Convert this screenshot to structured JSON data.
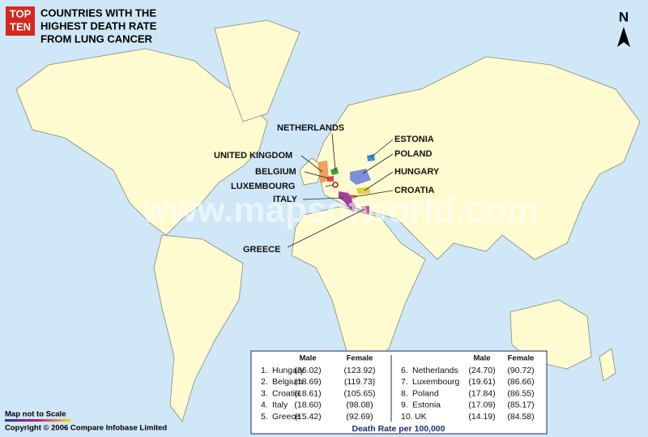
{
  "badge": [
    "TOP",
    "TEN"
  ],
  "title": [
    "COUNTRIES WITH THE",
    "HIGHEST DEATH RATE",
    "FROM LUNG CANCER"
  ],
  "north": "N",
  "watermark": "www.mapsofworld.com",
  "labels": [
    {
      "text": "NETHERLANDS"
    },
    {
      "text": "ESTONIA"
    },
    {
      "text": "UNITED KINGDOM"
    },
    {
      "text": "POLAND"
    },
    {
      "text": "BELGIUM"
    },
    {
      "text": "HUNGARY"
    },
    {
      "text": "LUXEMBOURG"
    },
    {
      "text": "CROATIA"
    },
    {
      "text": "ITALY"
    },
    {
      "text": "GREECE"
    }
  ],
  "table": {
    "headers": [
      "Male",
      "Female"
    ],
    "rows": [
      {
        "rank": "1.",
        "country": "Hungary",
        "male": "(36.02)",
        "female": "(123.92)"
      },
      {
        "rank": "2.",
        "country": "Belgium",
        "male": "(18.69)",
        "female": "(119.73)"
      },
      {
        "rank": "3.",
        "country": "Croatia",
        "male": "(18.61)",
        "female": "(105.65)"
      },
      {
        "rank": "4.",
        "country": "Italy",
        "male": "(18.60)",
        "female": "(98.08)"
      },
      {
        "rank": "5.",
        "country": "Greece",
        "male": "(15.42)",
        "female": "(92.69)"
      },
      {
        "rank": "6.",
        "country": "Netherlands",
        "male": "(24.70)",
        "female": "(90.72)"
      },
      {
        "rank": "7.",
        "country": "Luxembourg",
        "male": "(19.61)",
        "female": "(86.66)"
      },
      {
        "rank": "8.",
        "country": "Poland",
        "male": "(17.84)",
        "female": "(86.55)"
      },
      {
        "rank": "9.",
        "country": "Estonia",
        "male": "(17.09)",
        "female": "(85.17)"
      },
      {
        "rank": "10.",
        "country": "UK",
        "male": "(14.19)",
        "female": "(84.58)"
      }
    ],
    "caption": "Death Rate per 100,000"
  },
  "scale_note": "Map not to Scale",
  "copyright": "Copyright © 2006 Compare Infobase Limited"
}
